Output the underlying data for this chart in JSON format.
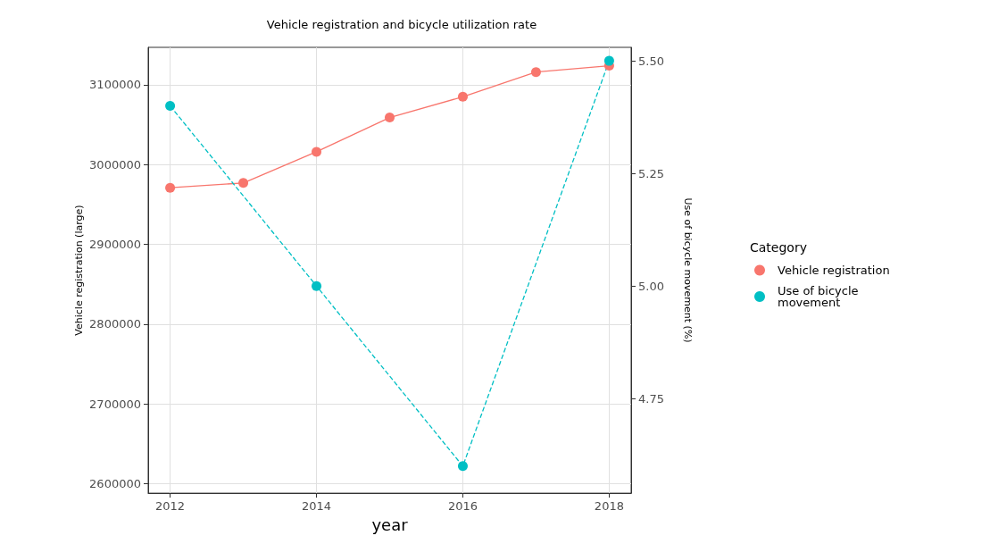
{
  "chart_data": {
    "type": "line",
    "title": "Vehicle registration and bicycle utilization rate",
    "xlabel": "year",
    "ylabel": "Vehicle registration (large)",
    "y2label": "Use of bicycle movement (%)",
    "legend_title": "Category",
    "legend": "right",
    "grid": true,
    "marker": "circle",
    "xlim": [
      2011.7,
      2018.3
    ],
    "xticks": [
      2012,
      2014,
      2016,
      2018
    ],
    "ylim": [
      2588000,
      3147000
    ],
    "yticks": [
      2600000,
      2700000,
      2800000,
      2900000,
      3000000,
      3100000
    ],
    "y2lim": [
      4.54,
      5.53
    ],
    "y2ticks": [
      4.75,
      {
        "value": 5,
        "label": "5.00"
      },
      5.25,
      {
        "value": 5.5,
        "label": "5.50"
      }
    ],
    "series": [
      {
        "name": "Vehicle registration",
        "color": "#f8766d",
        "line_style": "solid",
        "x": [
          2012,
          2013,
          2014,
          2015,
          2016,
          2017,
          2018
        ],
        "values": [
          2971000,
          2977000,
          3016000,
          3059000,
          3085000,
          3116000,
          3124000
        ]
      },
      {
        "name": "Use of bicycle movement",
        "color": "#00bfc4",
        "line_style": "dashed",
        "axis": "y2",
        "x": [
          2012,
          2014,
          2016,
          2018
        ],
        "values": [
          5.4,
          5.0,
          4.6,
          5.5
        ]
      }
    ]
  }
}
